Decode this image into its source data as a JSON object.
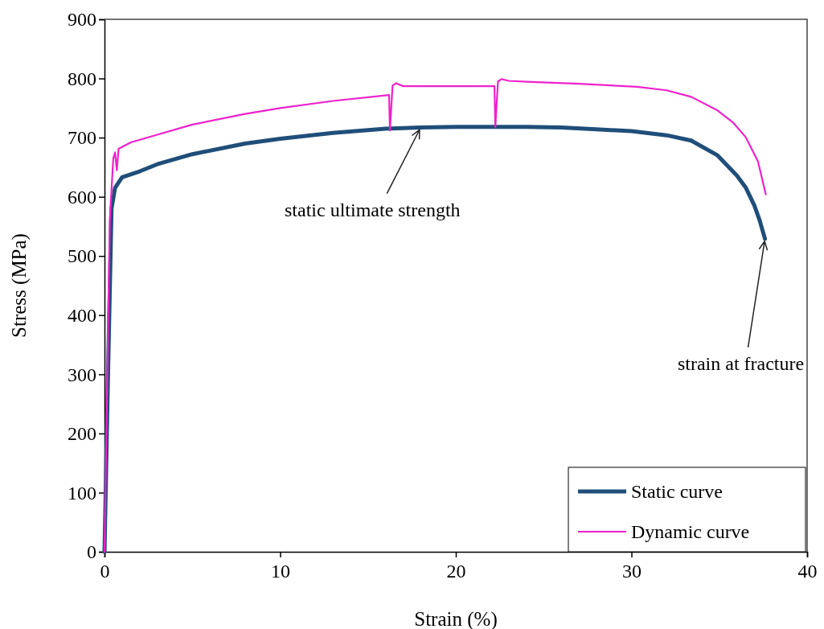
{
  "chart_data": {
    "type": "line",
    "xlabel": "Strain (%)",
    "ylabel": "Stress (MPa)",
    "xlim": [
      0,
      40
    ],
    "xticks": [
      0,
      10,
      20,
      30,
      40
    ],
    "ylim": [
      0,
      900
    ],
    "yticks": [
      0,
      100,
      200,
      300,
      400,
      500,
      600,
      700,
      800,
      900
    ],
    "grid": false,
    "legend": "bottom right",
    "marker": "none",
    "line_style": "solid",
    "series": [
      {
        "name": "Static curve",
        "color": "#1f4e79",
        "x": [
          0,
          0.2,
          0.4,
          0.6,
          1,
          2,
          3,
          5,
          8,
          10,
          13,
          16,
          18,
          20,
          22,
          24,
          26,
          28,
          30,
          32,
          33.4,
          34.9,
          36,
          36.5,
          37,
          37.3,
          37.6
        ],
        "values": [
          0,
          300,
          580,
          615,
          633,
          643,
          655,
          672,
          690,
          698,
          708,
          715,
          717,
          718,
          718,
          718,
          717,
          714,
          711,
          704,
          695,
          670,
          636,
          616,
          585,
          560,
          529
        ]
      },
      {
        "name": "Dynamic curve",
        "color": "#ee22cc",
        "x": [
          0,
          0.3,
          0.5,
          0.6,
          0.7,
          0.8,
          1.5,
          3,
          5,
          8,
          10,
          13,
          16.2,
          16.25,
          16.4,
          16.6,
          17,
          20,
          22.2,
          22.25,
          22.4,
          22.6,
          23,
          24.3,
          27,
          30.3,
          32,
          33.4,
          34.9,
          35.8,
          36.5,
          37.2,
          37.65
        ],
        "values": [
          0,
          560,
          665,
          675,
          645,
          681,
          692,
          705,
          722,
          740,
          750,
          762,
          772,
          712,
          788,
          792,
          787,
          787,
          787,
          718,
          795,
          799,
          796,
          794,
          791,
          786,
          780,
          769,
          746,
          725,
          701,
          660,
          604
        ]
      }
    ],
    "annotations": [
      {
        "text": "static ultimate strength",
        "x": 18,
        "y": 717
      },
      {
        "text": "strain at fracture",
        "x": 37.6,
        "y": 529
      }
    ]
  }
}
